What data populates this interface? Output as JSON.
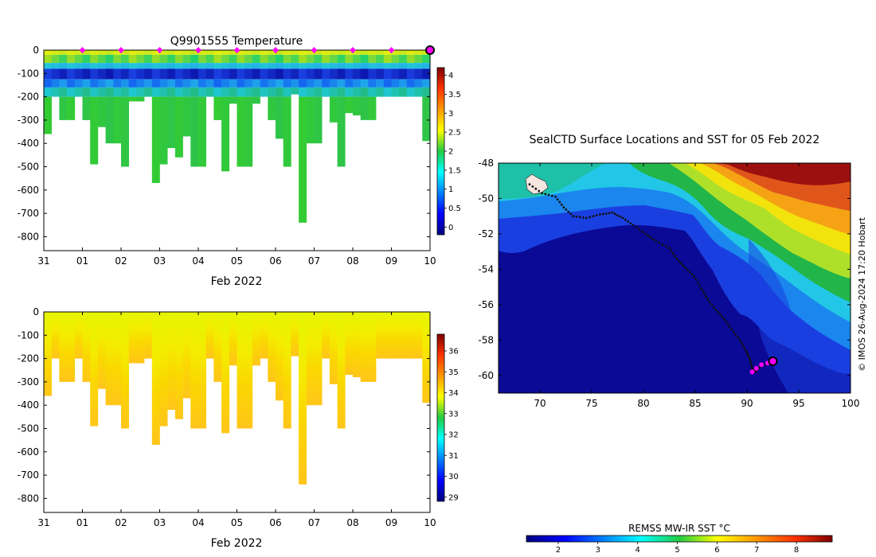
{
  "charts": {
    "temperature": {
      "title": "Q9901555  Temperature",
      "y_ticks": [
        0,
        -100,
        -200,
        -300,
        -400,
        -500,
        -600,
        -700,
        -800
      ],
      "y_range": [
        -860,
        0
      ],
      "x_ticks": [
        "31",
        "01",
        "02",
        "03",
        "04",
        "05",
        "06",
        "07",
        "08",
        "09",
        "10"
      ],
      "x_label": "Feb 2022",
      "colorbar": {
        "ticks": [
          "0",
          "0.5",
          "1",
          "1.5",
          "2",
          "2.5",
          "3",
          "3.5",
          "4"
        ],
        "range": [
          -0.2,
          4.2
        ]
      },
      "surface_marker_days": [
        1,
        2,
        3,
        4,
        5,
        6,
        7,
        8,
        9
      ],
      "latest_marker_day": 10
    },
    "salinity": {
      "y_ticks": [
        0,
        -100,
        -200,
        -300,
        -400,
        -500,
        -600,
        -700,
        -800
      ],
      "y_range": [
        -860,
        0
      ],
      "x_ticks": [
        "31",
        "01",
        "02",
        "03",
        "04",
        "05",
        "06",
        "07",
        "08",
        "09",
        "10"
      ],
      "x_label": "Feb 2022",
      "colorbar": {
        "ticks": [
          "29",
          "30",
          "31",
          "32",
          "33",
          "34",
          "35",
          "36"
        ],
        "range": [
          28.8,
          36.8
        ]
      }
    },
    "map": {
      "title": "SealCTD Surface Locations and SST for 05 Feb 2022",
      "lon_ticks": [
        "70",
        "75",
        "80",
        "85",
        "90",
        "95",
        "100"
      ],
      "lon_range": [
        66,
        100
      ],
      "lat_ticks": [
        "-48",
        "-50",
        "-52",
        "-54",
        "-56",
        "-58",
        "-60"
      ],
      "lat_range": [
        -61,
        -48
      ],
      "colorbar_label": "REMSS MW-IR SST °C",
      "colorbar_ticks": [
        "2",
        "3",
        "4",
        "5",
        "6",
        "7",
        "8"
      ],
      "credit": "© IMOS 26-Aug-2024 17:20 Hobart"
    }
  },
  "chart_data": [
    {
      "type": "heatmap",
      "title": "Q9901555  Temperature",
      "xlabel": "Feb 2022",
      "xlim": [
        "2022-01-31",
        "2022-02-10"
      ],
      "ylim": [
        -860,
        0
      ],
      "profile_days": [
        0.1,
        0.3,
        0.5,
        0.7,
        0.9,
        1.1,
        1.3,
        1.5,
        1.7,
        1.9,
        2.1,
        2.3,
        2.5,
        2.7,
        2.9,
        3.1,
        3.3,
        3.5,
        3.7,
        3.9,
        4.1,
        4.3,
        4.5,
        4.7,
        4.9,
        5.1,
        5.3,
        5.5,
        5.7,
        5.9,
        6.1,
        6.3,
        6.5,
        6.7,
        6.9,
        7.1,
        7.3,
        7.5,
        7.7,
        7.9,
        8.1,
        8.3,
        8.5,
        8.7,
        8.9,
        9.1,
        9.3,
        9.5,
        9.7,
        9.9
      ],
      "profile_max_depth_m": [
        360,
        200,
        300,
        300,
        200,
        300,
        490,
        330,
        400,
        400,
        500,
        220,
        220,
        200,
        570,
        490,
        420,
        460,
        370,
        500,
        500,
        200,
        300,
        520,
        230,
        500,
        500,
        230,
        200,
        300,
        380,
        500,
        190,
        740,
        400,
        400,
        200,
        310,
        500,
        270,
        280,
        300,
        300,
        200,
        200,
        200,
        200,
        200,
        200,
        390
      ],
      "colorscale_range": [
        -0.2,
        4.2
      ]
    },
    {
      "type": "heatmap",
      "xlabel": "Feb 2022",
      "xlim": [
        "2022-01-31",
        "2022-02-10"
      ],
      "ylim": [
        -860,
        0
      ],
      "profile_days": [
        0.1,
        0.3,
        0.5,
        0.7,
        0.9,
        1.1,
        1.3,
        1.5,
        1.7,
        1.9,
        2.1,
        2.3,
        2.5,
        2.7,
        2.9,
        3.1,
        3.3,
        3.5,
        3.7,
        3.9,
        4.1,
        4.3,
        4.5,
        4.7,
        4.9,
        5.1,
        5.3,
        5.5,
        5.7,
        5.9,
        6.1,
        6.3,
        6.5,
        6.7,
        6.9,
        7.1,
        7.3,
        7.5,
        7.7,
        7.9,
        8.1,
        8.3,
        8.5,
        8.7,
        8.9,
        9.1,
        9.3,
        9.5,
        9.7,
        9.9
      ],
      "profile_max_depth_m": [
        360,
        200,
        300,
        300,
        200,
        300,
        490,
        330,
        400,
        400,
        500,
        220,
        220,
        200,
        570,
        490,
        420,
        460,
        370,
        500,
        500,
        200,
        300,
        520,
        230,
        500,
        500,
        230,
        200,
        300,
        380,
        500,
        190,
        740,
        400,
        400,
        200,
        310,
        500,
        270,
        280,
        300,
        300,
        200,
        200,
        200,
        200,
        200,
        200,
        390
      ],
      "colorscale_range": [
        28.8,
        36.8
      ]
    },
    {
      "type": "scatter",
      "title": "SealCTD Surface Locations and SST for 05 Feb 2022",
      "xlim": [
        66,
        100
      ],
      "ylim": [
        -61,
        -48
      ],
      "track": [
        [
          69.0,
          -49.2
        ],
        [
          70.2,
          -49.7
        ],
        [
          71.5,
          -49.9
        ],
        [
          72.3,
          -50.5
        ],
        [
          73.2,
          -51.0
        ],
        [
          74.5,
          -51.1
        ],
        [
          75.8,
          -50.9
        ],
        [
          77.0,
          -50.8
        ],
        [
          78.0,
          -51.1
        ],
        [
          79.0,
          -51.5
        ],
        [
          80.2,
          -52.0
        ],
        [
          81.2,
          -52.4
        ],
        [
          82.5,
          -52.8
        ],
        [
          83.2,
          -53.4
        ],
        [
          84.0,
          -53.9
        ],
        [
          84.9,
          -54.4
        ],
        [
          85.6,
          -55.1
        ],
        [
          86.2,
          -55.7
        ],
        [
          87.0,
          -56.3
        ],
        [
          87.8,
          -56.8
        ],
        [
          88.5,
          -57.4
        ],
        [
          89.3,
          -58.0
        ],
        [
          89.9,
          -58.6
        ],
        [
          90.3,
          -59.1
        ],
        [
          90.5,
          -59.6
        ],
        [
          90.8,
          -59.8
        ],
        [
          91.3,
          -59.5
        ],
        [
          92.0,
          -59.3
        ]
      ],
      "magenta_recent": [
        [
          90.5,
          -59.8
        ],
        [
          90.9,
          -59.6
        ],
        [
          91.4,
          -59.4
        ],
        [
          92.0,
          -59.3
        ]
      ],
      "latest_position": [
        92.5,
        -59.2
      ]
    }
  ]
}
